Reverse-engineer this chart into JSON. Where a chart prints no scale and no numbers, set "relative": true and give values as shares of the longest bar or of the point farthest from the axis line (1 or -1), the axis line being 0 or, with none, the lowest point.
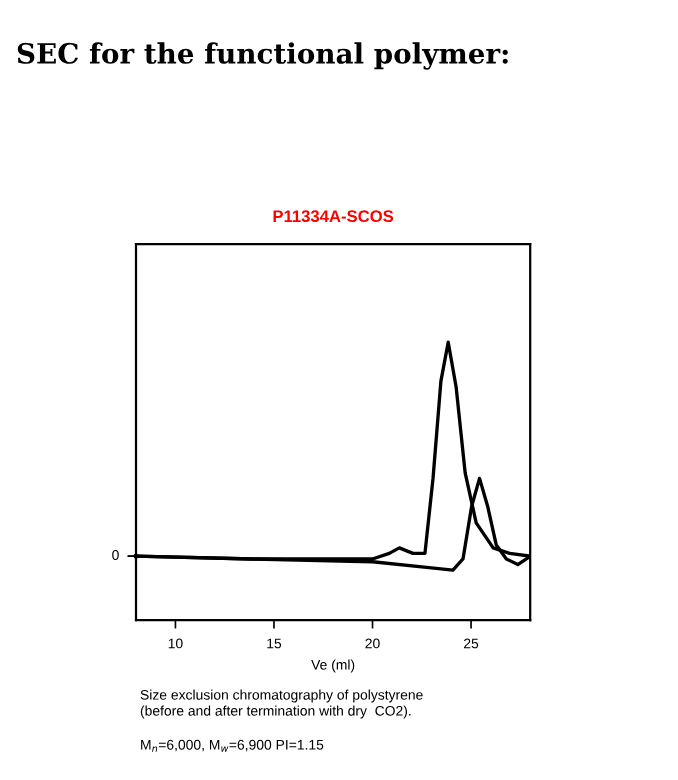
{
  "chart_data": {
    "type": "line",
    "title": "SEC for the functional polymer:",
    "subtitle": "P11334A-SCOS",
    "xlabel": "Ve (ml)",
    "annotations": [
      {
        "text": "0",
        "x": 8,
        "y": 0.23
      },
      "Size exclusion chromatography of polystyrene\n(before and after termination with dry  CO2).",
      "M$_{n}$=6,000, M$_{w}$=6,900 PI=1.15"
    ],
    "relative": true,
    "xlim": [
      8,
      28
    ],
    "xticks": [
      10,
      15,
      20,
      25
    ],
    "grid": false,
    "marker": "none",
    "line_style": "solid",
    "series": [
      {
        "color": "#000000",
        "x": [
          8.0,
          13.9,
          20.0,
          20.85,
          21.36,
          22.05,
          22.66,
          23.07,
          23.47,
          23.84,
          24.24,
          24.7,
          25.26,
          26.12,
          26.96,
          28.0
        ],
        "values": [
          0.23,
          0.22,
          0.22,
          0.24,
          0.26,
          0.24,
          0.24,
          0.51,
          0.86,
          1.0,
          0.84,
          0.53,
          0.35,
          0.26,
          0.24,
          0.23
        ]
      },
      {
        "color": "#000000",
        "x": [
          8.0,
          13.9,
          20.0,
          22.74,
          24.08,
          24.59,
          25.03,
          25.43,
          25.84,
          26.28,
          26.79,
          27.37,
          28.0
        ],
        "values": [
          0.23,
          0.22,
          0.21,
          0.19,
          0.18,
          0.22,
          0.41,
          0.51,
          0.41,
          0.27,
          0.22,
          0.2,
          0.23
        ]
      }
    ]
  }
}
